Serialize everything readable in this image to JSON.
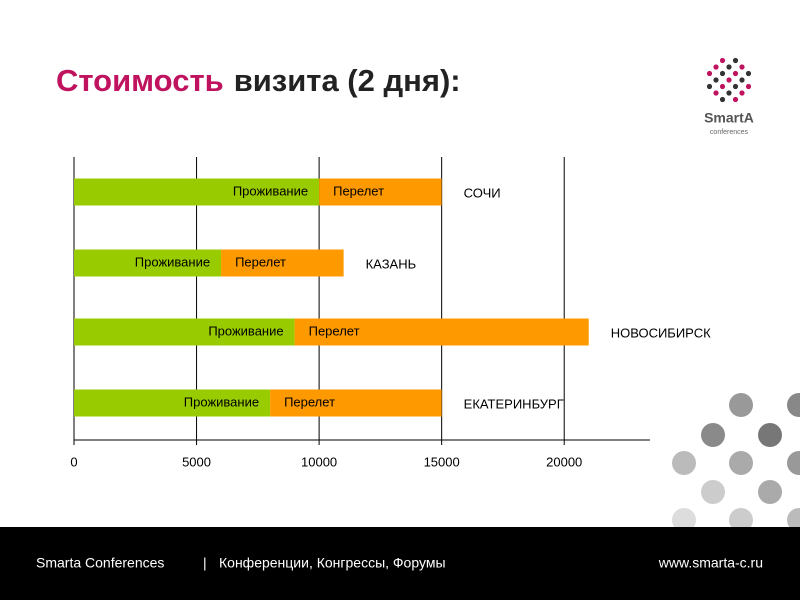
{
  "header": {
    "highlight": "Стоимость",
    "rest": "визита (2 дня):"
  },
  "logo": {
    "name": "SmartA",
    "tagline": "conferences"
  },
  "footer": {
    "company": "Smarta Conferences",
    "separator": "|",
    "slogan": "Конференции, Конгрессы, Форумы",
    "url": "www.smarta-c.ru"
  },
  "chart_data": {
    "type": "bar",
    "orientation": "horizontal",
    "stacked": true,
    "categories": [
      "СОЧИ",
      "КАЗАНЬ",
      "НОВОСИБИРСК",
      "ЕКАТЕРИНБУРГ"
    ],
    "series": [
      {
        "name": "Проживание",
        "color": "#99cc00",
        "values": [
          10000,
          6000,
          9000,
          8000
        ]
      },
      {
        "name": "Перелет",
        "color": "#ff9900",
        "values": [
          5000,
          5000,
          12000,
          7000
        ]
      }
    ],
    "xlim": [
      0,
      23500
    ],
    "xticks": [
      0,
      5000,
      10000,
      15000,
      20000
    ],
    "grid": true
  }
}
